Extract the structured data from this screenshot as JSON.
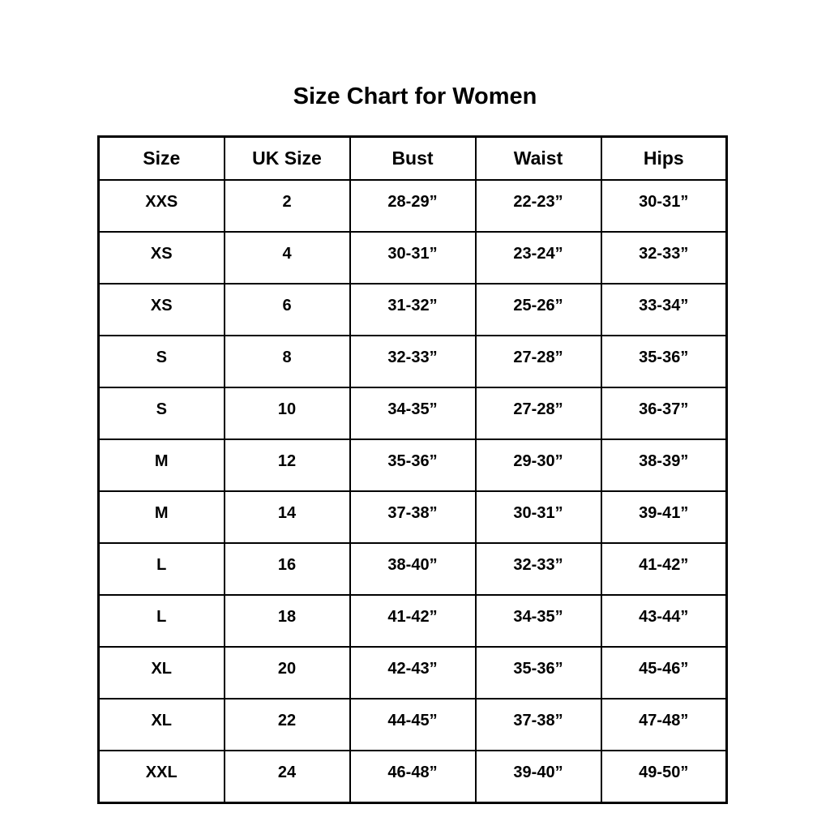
{
  "title": "Size Chart for Women",
  "chart_data": {
    "type": "table",
    "title": "Size Chart for Women",
    "columns": [
      "Size",
      "UK Size",
      "Bust",
      "Waist",
      "Hips"
    ],
    "rows": [
      [
        "XXS",
        "2",
        "28-29”",
        "22-23”",
        "30-31”"
      ],
      [
        "XS",
        "4",
        "30-31”",
        "23-24”",
        "32-33”"
      ],
      [
        "XS",
        "6",
        "31-32”",
        "25-26”",
        "33-34”"
      ],
      [
        "S",
        "8",
        "32-33”",
        "27-28”",
        "35-36”"
      ],
      [
        "S",
        "10",
        "34-35”",
        "27-28”",
        "36-37”"
      ],
      [
        "M",
        "12",
        "35-36”",
        "29-30”",
        "38-39”"
      ],
      [
        "M",
        "14",
        "37-38”",
        "30-31”",
        "39-41”"
      ],
      [
        "L",
        "16",
        "38-40”",
        "32-33”",
        "41-42”"
      ],
      [
        "L",
        "18",
        "41-42”",
        "34-35”",
        "43-44”"
      ],
      [
        "XL",
        "20",
        "42-43”",
        "35-36”",
        "45-46”"
      ],
      [
        "XL",
        "22",
        "44-45”",
        "37-38”",
        "47-48”"
      ],
      [
        "XXL",
        "24",
        "46-48”",
        "39-40”",
        "49-50”"
      ]
    ],
    "layout": {
      "legend": "none",
      "grid": "full-borders"
    },
    "colors": {
      "text": "#000000",
      "border": "#000000",
      "background": "#ffffff"
    }
  }
}
